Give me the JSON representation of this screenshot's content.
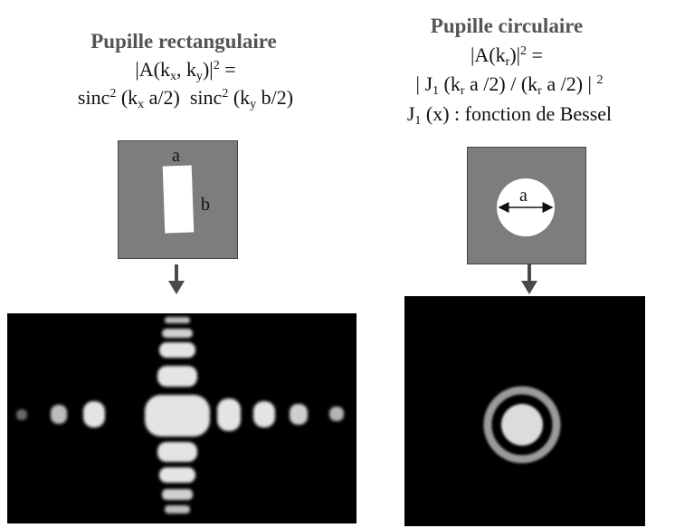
{
  "left": {
    "title": "Pupille rectangulaire",
    "formula": {
      "intensity_prefix": "|A(k",
      "kx": "x",
      "comma_ky": ", k",
      "ky": "y",
      "suffix": ")|",
      "sup2": "2",
      "equals": " =",
      "sinc_a": "sinc",
      "sinc_a_sup": "2",
      "sinc_a_arg_open": " (k",
      "sinc_a_sub": "x",
      "sinc_a_arg_close": " a/2)",
      "sinc_b": "sinc",
      "sinc_b_sup": "2",
      "sinc_b_arg_open": " (k",
      "sinc_b_sub": "y",
      "sinc_b_arg_close": " b/2)"
    },
    "pupil_labels": {
      "a": "a",
      "b": "b"
    }
  },
  "right": {
    "title": "Pupille circulaire",
    "formula": {
      "line1_prefix": "|A(k",
      "line1_sub": "r",
      "line1_suffix": ")|",
      "line1_sup": "2",
      "line1_equals": " =",
      "line2_open": "| J",
      "line2_j_sub": "1",
      "line2_mid1": " (k",
      "line2_sub1": "r",
      "line2_mid2": " a /2) / (k",
      "line2_sub2": "r",
      "line2_mid3": " a /2) | ",
      "line2_sup": "2",
      "line3_j": "J",
      "line3_j_sub": "1",
      "line3_rest": " (x) : fonction de Bessel"
    },
    "pupil_labels": {
      "a": "a"
    }
  },
  "colors": {
    "title_gray": "#555555",
    "pupil_gray": "#7d7d7d",
    "pattern_bg": "#000000",
    "spot": "#e6e6e6"
  }
}
